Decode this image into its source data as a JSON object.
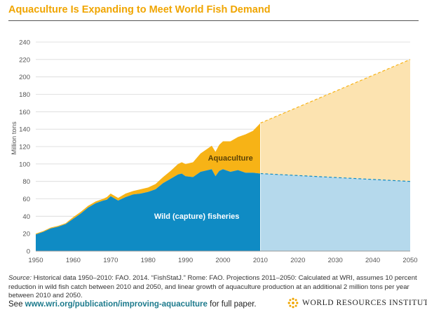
{
  "title": "Aquaculture Is Expanding to Meet World Fish Demand",
  "colors": {
    "title": "#f0a500",
    "wild": "#0f8bc4",
    "aquaculture": "#f7b316",
    "wild_projection": "#b5d9ec",
    "aquaculture_projection": "#fce3b0",
    "link": "#1c7a8c"
  },
  "chart_data": {
    "type": "area",
    "stacked": true,
    "title": "Aquaculture Is Expanding to Meet World Fish Demand",
    "ylabel": "Million tons",
    "xlabel": "",
    "xlim": [
      1950,
      2050
    ],
    "ylim": [
      0,
      240
    ],
    "x_ticks": [
      "1950",
      "1960",
      "1970",
      "1980",
      "1990",
      "2000",
      "2010",
      "2020",
      "2030",
      "2040",
      "2050"
    ],
    "y_ticks": [
      "0",
      "20",
      "40",
      "60",
      "80",
      "100",
      "120",
      "140",
      "160",
      "180",
      "200",
      "220",
      "240"
    ],
    "gridlines": true,
    "series": [
      {
        "name": "Wild (capture) fisheries",
        "x": [
          1950,
          1952,
          1954,
          1956,
          1958,
          1960,
          1962,
          1964,
          1966,
          1968,
          1969,
          1970,
          1972,
          1974,
          1976,
          1978,
          1980,
          1982,
          1984,
          1986,
          1988,
          1989,
          1990,
          1992,
          1994,
          1996,
          1997,
          1998,
          1999,
          2000,
          2002,
          2004,
          2006,
          2008,
          2010
        ],
        "values": [
          19,
          22,
          26,
          28,
          31,
          37,
          43,
          50,
          55,
          58,
          59,
          63,
          58,
          62,
          65,
          66,
          68,
          71,
          78,
          83,
          88,
          89,
          86,
          85,
          91,
          93,
          94,
          86,
          92,
          94,
          91,
          93,
          90,
          90,
          89
        ]
      },
      {
        "name": "Aquaculture",
        "x": [
          1950,
          1952,
          1954,
          1956,
          1958,
          1960,
          1962,
          1964,
          1966,
          1968,
          1969,
          1970,
          1972,
          1974,
          1976,
          1978,
          1980,
          1982,
          1984,
          1986,
          1988,
          1989,
          1990,
          1992,
          1994,
          1996,
          1997,
          1998,
          1999,
          2000,
          2002,
          2004,
          2006,
          2008,
          2010
        ],
        "values": [
          1,
          1,
          1,
          1,
          1,
          2,
          2,
          2,
          2,
          2,
          3,
          3,
          3,
          4,
          4,
          5,
          5,
          6,
          7,
          9,
          12,
          13,
          14,
          17,
          21,
          25,
          27,
          28,
          30,
          32,
          35,
          38,
          44,
          48,
          58
        ]
      }
    ],
    "projection": {
      "x": [
        2010,
        2050
      ],
      "wild": [
        89,
        80
      ],
      "total": [
        147,
        220
      ],
      "style": "lighter fill, dashed top boundary"
    },
    "annotations": [
      {
        "text": "Aquaculture",
        "series": "Aquaculture"
      },
      {
        "text": "Wild (capture) fisheries",
        "series": "Wild (capture) fisheries"
      }
    ]
  },
  "footer": {
    "source_label": "Source:",
    "source_text": " Historical data 1950–2010: FAO. 2014. “FishStatJ.” Rome: FAO. Projections 2011–2050: Calculated at WRI, assumes 10 percent reduction in wild fish catch between 2010 and 2050, and linear growth of aquaculture production at an additional 2 million tons per year between 2010 and 2050.",
    "see_prefix": "See ",
    "url": "www.wri.org/publication/improving-aquaculture",
    "see_suffix": " for full paper.",
    "logo_text": "WORLD RESOURCES INSTITUTE"
  }
}
